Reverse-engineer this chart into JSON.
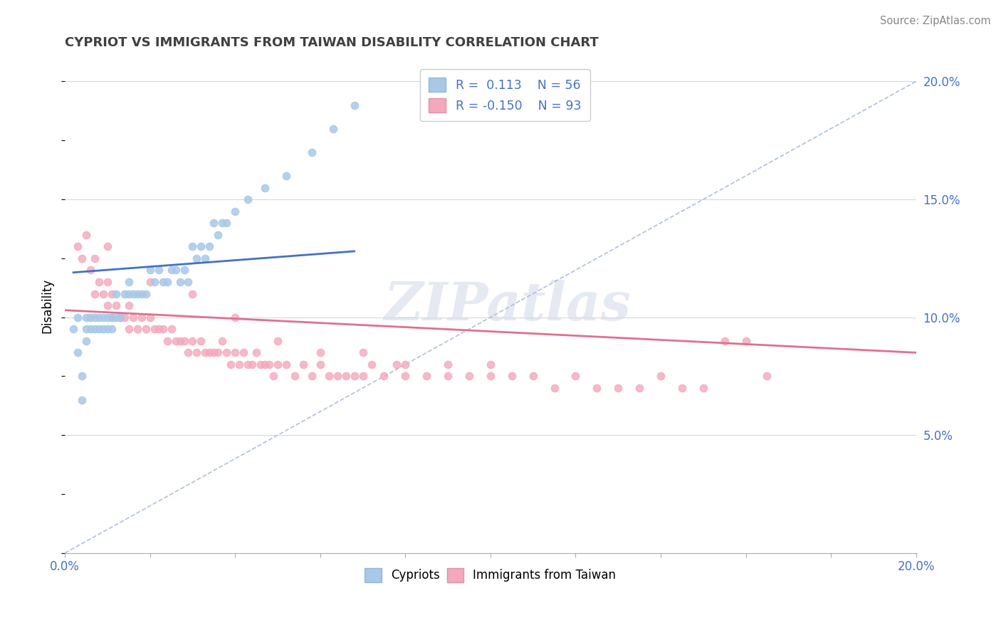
{
  "title": "CYPRIOT VS IMMIGRANTS FROM TAIWAN DISABILITY CORRELATION CHART",
  "source": "Source: ZipAtlas.com",
  "ylabel": "Disability",
  "xlim": [
    0.0,
    0.2
  ],
  "ylim": [
    0.0,
    0.21
  ],
  "y_ticks_right": [
    0.05,
    0.1,
    0.15,
    0.2
  ],
  "y_tick_labels_right": [
    "5.0%",
    "10.0%",
    "15.0%",
    "20.0%"
  ],
  "cypriot_color": "#a8c8e8",
  "taiwan_color": "#f4a8bc",
  "cypriot_line_color": "#4472c4",
  "taiwan_line_color": "#e07090",
  "dashed_line_color": "#b0c0d8",
  "watermark": "ZIPatlas",
  "cypriot_R": 0.113,
  "cypriot_N": 56,
  "taiwan_R": -0.15,
  "taiwan_N": 93,
  "cypriot_scatter_x": [
    0.002,
    0.003,
    0.003,
    0.004,
    0.004,
    0.005,
    0.005,
    0.005,
    0.006,
    0.006,
    0.007,
    0.007,
    0.008,
    0.008,
    0.009,
    0.009,
    0.01,
    0.01,
    0.011,
    0.011,
    0.012,
    0.012,
    0.013,
    0.014,
    0.015,
    0.015,
    0.016,
    0.017,
    0.018,
    0.019,
    0.02,
    0.021,
    0.022,
    0.023,
    0.024,
    0.025,
    0.026,
    0.027,
    0.028,
    0.029,
    0.03,
    0.031,
    0.032,
    0.033,
    0.034,
    0.035,
    0.036,
    0.037,
    0.038,
    0.04,
    0.043,
    0.047,
    0.052,
    0.058,
    0.063,
    0.068
  ],
  "cypriot_scatter_y": [
    0.095,
    0.085,
    0.1,
    0.065,
    0.075,
    0.09,
    0.095,
    0.1,
    0.095,
    0.1,
    0.095,
    0.1,
    0.095,
    0.1,
    0.095,
    0.1,
    0.095,
    0.1,
    0.095,
    0.1,
    0.1,
    0.11,
    0.1,
    0.11,
    0.11,
    0.115,
    0.11,
    0.11,
    0.11,
    0.11,
    0.12,
    0.115,
    0.12,
    0.115,
    0.115,
    0.12,
    0.12,
    0.115,
    0.12,
    0.115,
    0.13,
    0.125,
    0.13,
    0.125,
    0.13,
    0.14,
    0.135,
    0.14,
    0.14,
    0.145,
    0.15,
    0.155,
    0.16,
    0.17,
    0.18,
    0.19
  ],
  "taiwan_scatter_x": [
    0.003,
    0.004,
    0.005,
    0.006,
    0.007,
    0.007,
    0.008,
    0.009,
    0.01,
    0.01,
    0.011,
    0.011,
    0.012,
    0.013,
    0.014,
    0.015,
    0.015,
    0.016,
    0.017,
    0.018,
    0.019,
    0.02,
    0.021,
    0.022,
    0.023,
    0.024,
    0.025,
    0.026,
    0.027,
    0.028,
    0.029,
    0.03,
    0.031,
    0.032,
    0.033,
    0.034,
    0.035,
    0.036,
    0.037,
    0.038,
    0.039,
    0.04,
    0.041,
    0.042,
    0.043,
    0.044,
    0.045,
    0.046,
    0.047,
    0.048,
    0.049,
    0.05,
    0.052,
    0.054,
    0.056,
    0.058,
    0.06,
    0.062,
    0.064,
    0.066,
    0.068,
    0.07,
    0.072,
    0.075,
    0.078,
    0.08,
    0.085,
    0.09,
    0.095,
    0.1,
    0.105,
    0.11,
    0.115,
    0.12,
    0.125,
    0.13,
    0.135,
    0.14,
    0.145,
    0.15,
    0.01,
    0.02,
    0.03,
    0.04,
    0.05,
    0.06,
    0.07,
    0.08,
    0.09,
    0.1,
    0.155,
    0.16,
    0.165
  ],
  "taiwan_scatter_y": [
    0.13,
    0.125,
    0.135,
    0.12,
    0.125,
    0.11,
    0.115,
    0.11,
    0.115,
    0.105,
    0.11,
    0.1,
    0.105,
    0.1,
    0.1,
    0.105,
    0.095,
    0.1,
    0.095,
    0.1,
    0.095,
    0.1,
    0.095,
    0.095,
    0.095,
    0.09,
    0.095,
    0.09,
    0.09,
    0.09,
    0.085,
    0.09,
    0.085,
    0.09,
    0.085,
    0.085,
    0.085,
    0.085,
    0.09,
    0.085,
    0.08,
    0.085,
    0.08,
    0.085,
    0.08,
    0.08,
    0.085,
    0.08,
    0.08,
    0.08,
    0.075,
    0.08,
    0.08,
    0.075,
    0.08,
    0.075,
    0.08,
    0.075,
    0.075,
    0.075,
    0.075,
    0.075,
    0.08,
    0.075,
    0.08,
    0.075,
    0.075,
    0.075,
    0.075,
    0.075,
    0.075,
    0.075,
    0.07,
    0.075,
    0.07,
    0.07,
    0.07,
    0.075,
    0.07,
    0.07,
    0.13,
    0.115,
    0.11,
    0.1,
    0.09,
    0.085,
    0.085,
    0.08,
    0.08,
    0.08,
    0.09,
    0.09,
    0.075
  ]
}
